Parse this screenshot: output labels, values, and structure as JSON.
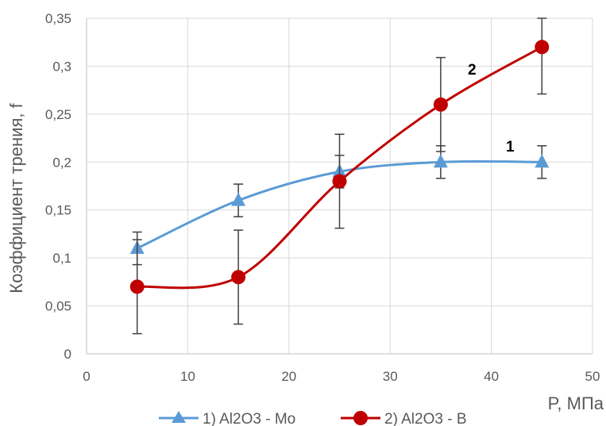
{
  "chart_data": {
    "type": "line",
    "xlabel": "P, МПа",
    "ylabel": "Коэффициент трения, f",
    "xlim": [
      0,
      50
    ],
    "ylim": [
      0,
      0.35
    ],
    "x_ticks": [
      0,
      10,
      20,
      30,
      40,
      50
    ],
    "y_ticks": [
      0,
      0.05,
      0.1,
      0.15,
      0.2,
      0.25,
      0.3,
      0.35
    ],
    "x_tick_labels": [
      "0",
      "10",
      "20",
      "30",
      "40",
      "50"
    ],
    "y_tick_labels": [
      "0",
      "0,05",
      "0,1",
      "0,15",
      "0,2",
      "0,25",
      "0,3",
      "0,35"
    ],
    "grid": true,
    "legend_position": "bottom",
    "series": [
      {
        "name": "1) Al2O3 - Mo",
        "label": "1",
        "color": "#5B9BD5",
        "marker": "triangle",
        "x": [
          5,
          15,
          25,
          35,
          45
        ],
        "y": [
          0.11,
          0.16,
          0.19,
          0.2,
          0.2
        ],
        "error": [
          0.017,
          0.017,
          0.017,
          0.017,
          0.017
        ]
      },
      {
        "name": "2) Al2O3 - B",
        "label": "2",
        "color": "#C00000",
        "marker": "circle",
        "x": [
          5,
          15,
          25,
          35,
          45
        ],
        "y": [
          0.07,
          0.08,
          0.18,
          0.26,
          0.32
        ],
        "error": [
          0.049,
          0.049,
          0.049,
          0.049,
          0.049
        ]
      }
    ]
  }
}
